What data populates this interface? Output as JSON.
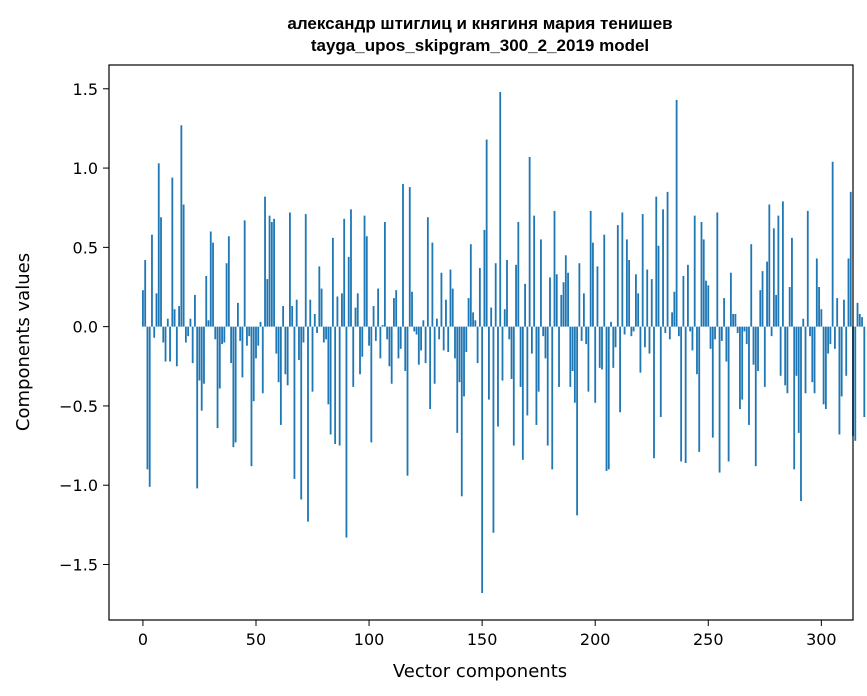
{
  "chart_data": {
    "type": "bar",
    "title": "александр штиглиц и княгиня мария тенишев",
    "subtitle": "tayga_upos_skipgram_300_2_2019 model",
    "xlabel": "Vector components",
    "ylabel": "Components values",
    "xlim": [
      -15,
      314
    ],
    "ylim": [
      -1.85,
      1.65
    ],
    "xticks": [
      0,
      50,
      100,
      150,
      200,
      250,
      300
    ],
    "yticks": [
      -1.5,
      -1.0,
      -0.5,
      0.0,
      0.5,
      1.0,
      1.5
    ],
    "ytick_labels": [
      "−1.5",
      "−1.0",
      "−0.5",
      "0.0",
      "0.5",
      "1.0",
      "1.5"
    ],
    "color": "#1f77b4",
    "grid": false,
    "values": [
      0.23,
      0.42,
      -0.9,
      -1.01,
      0.58,
      -0.07,
      0.21,
      1.03,
      0.69,
      -0.1,
      -0.22,
      0.05,
      -0.22,
      0.94,
      0.11,
      -0.25,
      0.13,
      1.27,
      0.77,
      -0.1,
      -0.06,
      0.05,
      -0.23,
      0.2,
      -1.02,
      -0.34,
      -0.53,
      -0.36,
      0.32,
      0.04,
      0.6,
      0.53,
      -0.08,
      -0.64,
      -0.39,
      -0.11,
      -0.1,
      0.4,
      0.57,
      -0.23,
      -0.76,
      -0.73,
      0.15,
      -0.09,
      -0.32,
      0.67,
      -0.12,
      -0.06,
      -0.88,
      -0.47,
      -0.2,
      -0.12,
      0.03,
      -0.42,
      0.82,
      0.3,
      0.7,
      0.66,
      0.68,
      -0.17,
      -0.35,
      -0.62,
      0.13,
      -0.3,
      -0.37,
      0.72,
      0.13,
      -0.96,
      0.17,
      -0.21,
      -1.09,
      -0.1,
      0.71,
      -1.23,
      0.17,
      -0.41,
      0.08,
      -0.04,
      0.38,
      0.24,
      -0.1,
      -0.08,
      -0.49,
      -0.68,
      0.56,
      -0.74,
      0.19,
      -0.75,
      0.21,
      0.68,
      -1.33,
      0.44,
      0.74,
      -0.38,
      0.12,
      0.21,
      -0.3,
      -0.19,
      0.7,
      0.57,
      -0.12,
      -0.73,
      0.13,
      -0.09,
      0.24,
      -0.2,
      0.01,
      0.66,
      -0.08,
      -0.25,
      -0.36,
      0.18,
      0.23,
      -0.2,
      -0.14,
      0.9,
      -0.28,
      -0.94,
      0.88,
      0.22,
      -0.03,
      -0.05,
      -0.24,
      -0.15,
      0.04,
      -0.23,
      0.69,
      -0.52,
      0.53,
      -0.36,
      0.05,
      -0.08,
      0.34,
      -0.15,
      0.17,
      -0.16,
      0.36,
      0.24,
      -0.2,
      -0.67,
      -0.35,
      -1.07,
      -0.44,
      -0.16,
      0.18,
      0.52,
      0.09,
      0.04,
      -0.23,
      0.37,
      -1.68,
      0.61,
      1.18,
      -0.46,
      0.12,
      -1.3,
      0.4,
      -0.63,
      1.48,
      -0.34,
      0.11,
      0.42,
      -0.08,
      -0.33,
      -0.75,
      0.39,
      0.66,
      -0.38,
      -0.84,
      0.27,
      -0.56,
      1.07,
      -0.17,
      0.7,
      -0.62,
      -0.41,
      0.55,
      -0.06,
      -0.2,
      -0.75,
      0.31,
      -0.9,
      0.73,
      0.33,
      -0.38,
      0.2,
      0.28,
      0.45,
      0.34,
      -0.38,
      -0.28,
      -0.48,
      -1.19,
      0.4,
      -0.09,
      0.21,
      -0.11,
      -0.41,
      0.73,
      0.53,
      -0.48,
      0.38,
      -0.26,
      -0.27,
      0.58,
      -0.91,
      -0.9,
      0.03,
      -0.26,
      -0.13,
      0.64,
      -0.54,
      0.72,
      -0.05,
      0.55,
      0.42,
      -0.06,
      -0.03,
      0.33,
      0.21,
      -0.29,
      0.71,
      -0.13,
      0.36,
      -0.17,
      0.3,
      -0.83,
      0.82,
      0.51,
      -0.57,
      0.74,
      -0.04,
      0.85,
      -0.08,
      0.09,
      0.22,
      1.43,
      -0.06,
      -0.85,
      0.32,
      -0.86,
      0.39,
      -0.03,
      -0.15,
      0.7,
      -0.3,
      -0.79,
      0.66,
      0.55,
      0.29,
      0.26,
      -0.14,
      -0.7,
      -0.08,
      0.72,
      -0.92,
      -0.09,
      0.18,
      -0.22,
      -0.85,
      0.34,
      0.08,
      0.08,
      -0.04,
      -0.52,
      -0.46,
      -0.03,
      -0.11,
      -0.62,
      0.52,
      -0.24,
      -0.88,
      -0.28,
      0.23,
      0.35,
      -0.38,
      0.41,
      0.77,
      -0.06,
      0.62,
      0.2,
      0.7,
      -0.31,
      0.79,
      -0.37,
      -0.42,
      0.25,
      0.56,
      -0.9,
      -0.31,
      -0.67,
      -1.1,
      0.05,
      -0.42,
      0.73,
      -0.06,
      -0.35,
      -0.42,
      0.43,
      0.25,
      0.11,
      -0.49,
      -0.52,
      -0.17,
      -0.11,
      1.04,
      -0.14,
      0.18,
      -0.68,
      -0.44,
      0.17,
      -0.31,
      0.43,
      0.85,
      -0.69,
      -0.72,
      0.15,
      0.08,
      0.06,
      -0.57
    ]
  }
}
